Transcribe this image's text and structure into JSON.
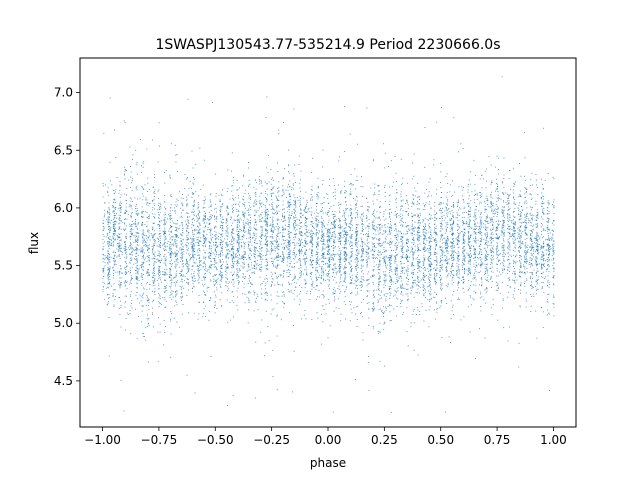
{
  "chart_data": {
    "type": "scatter",
    "title": "1SWASPJ130543.77-535214.9 Period 2230666.0s",
    "xlabel": "phase",
    "ylabel": "flux",
    "xlim": [
      -1.1,
      1.1
    ],
    "ylim": [
      4.1,
      7.3
    ],
    "x_ticks": [
      -1.0,
      -0.75,
      -0.5,
      -0.25,
      0.0,
      0.25,
      0.5,
      0.75,
      1.0
    ],
    "x_tick_labels": [
      "−1.00",
      "−0.75",
      "−0.50",
      "−0.25",
      "0.00",
      "0.25",
      "0.50",
      "0.75",
      "1.00"
    ],
    "y_ticks": [
      4.5,
      5.0,
      5.5,
      6.0,
      6.5,
      7.0
    ],
    "y_tick_labels": [
      "4.5",
      "5.0",
      "5.5",
      "6.0",
      "6.5",
      "7.0"
    ],
    "grid": false,
    "legend": "none",
    "marker_color": "#1f77b4",
    "series": [
      {
        "profile": {
          "phase": [
            -1.0,
            -0.9,
            -0.8,
            -0.7,
            -0.6,
            -0.5,
            -0.4,
            -0.3,
            -0.2,
            -0.1,
            0.0,
            0.1,
            0.2,
            0.3,
            0.4,
            0.5,
            0.6,
            0.7,
            0.8,
            0.9,
            1.0
          ],
          "median_flux": [
            5.68,
            5.7,
            5.6,
            5.63,
            5.67,
            5.66,
            5.7,
            5.74,
            5.76,
            5.71,
            5.68,
            5.7,
            5.6,
            5.63,
            5.67,
            5.66,
            5.7,
            5.74,
            5.76,
            5.71,
            5.68
          ],
          "flux_spread": [
            0.25,
            0.26,
            0.33,
            0.27,
            0.25,
            0.24,
            0.24,
            0.27,
            0.27,
            0.25,
            0.25,
            0.26,
            0.33,
            0.27,
            0.25,
            0.24,
            0.24,
            0.27,
            0.27,
            0.25,
            0.25
          ],
          "min_flux": 4.22,
          "max_flux": 7.15
        }
      }
    ]
  }
}
